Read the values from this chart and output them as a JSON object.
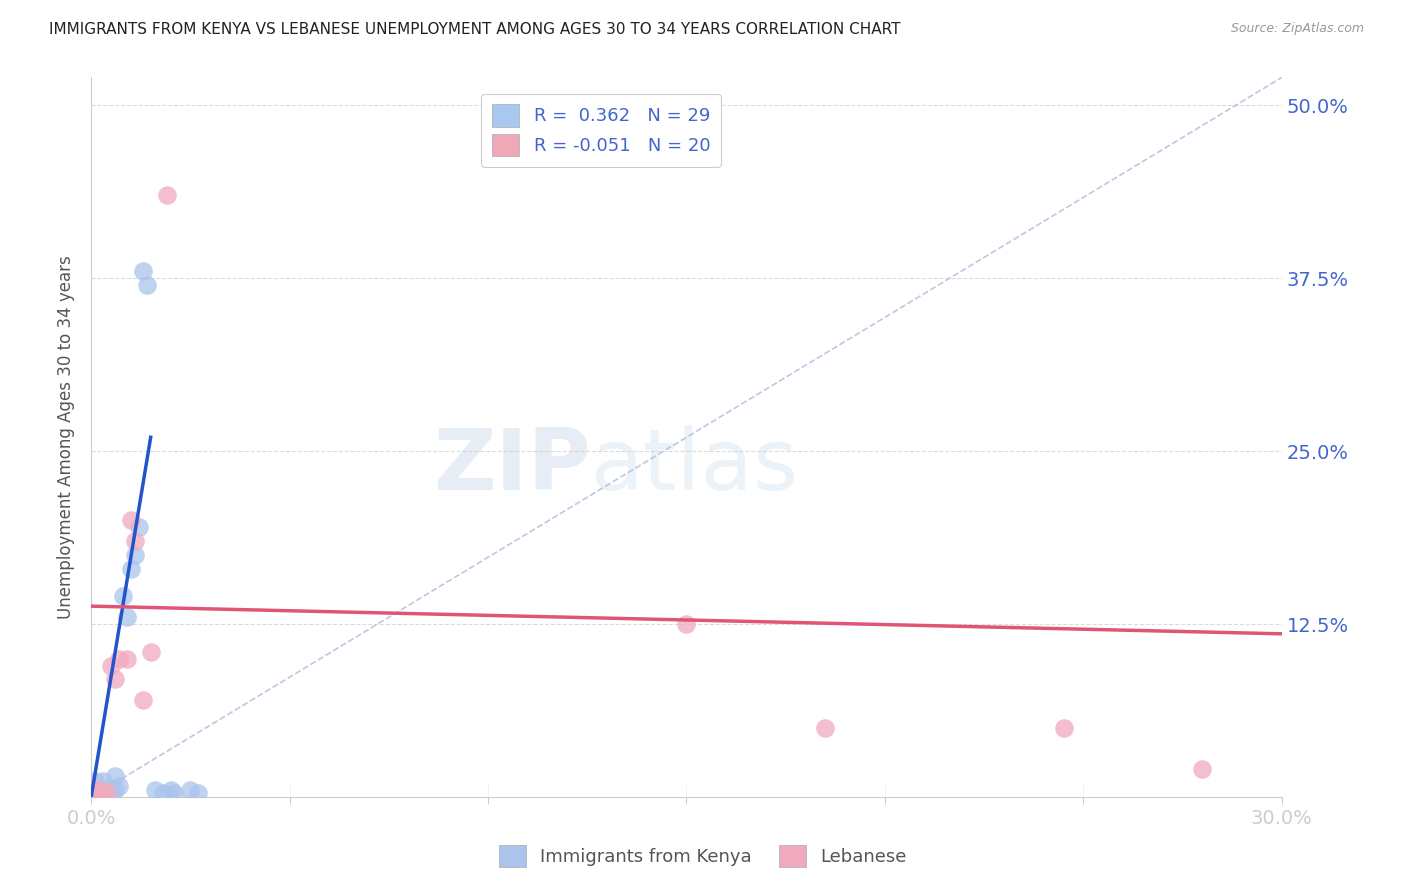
{
  "title": "IMMIGRANTS FROM KENYA VS LEBANESE UNEMPLOYMENT AMONG AGES 30 TO 34 YEARS CORRELATION CHART",
  "source": "Source: ZipAtlas.com",
  "ylabel": "Unemployment Among Ages 30 to 34 years",
  "xlim": [
    0.0,
    0.3
  ],
  "ylim": [
    0.0,
    0.52
  ],
  "x_ticks": [
    0.0,
    0.05,
    0.1,
    0.15,
    0.2,
    0.25,
    0.3
  ],
  "x_tick_labels": [
    "0.0%",
    "",
    "",
    "",
    "",
    "",
    "30.0%"
  ],
  "y_ticks": [
    0.0,
    0.125,
    0.25,
    0.375,
    0.5
  ],
  "y_tick_labels_right": [
    "",
    "12.5%",
    "25.0%",
    "37.5%",
    "50.0%"
  ],
  "legend_entries": [
    {
      "label": "R =  0.362   N = 29",
      "color": "#a8c8f0"
    },
    {
      "label": "R = -0.051   N = 20",
      "color": "#f0a8b8"
    }
  ],
  "kenya_scatter": [
    [
      0.001,
      0.002
    ],
    [
      0.001,
      0.003
    ],
    [
      0.001,
      0.005
    ],
    [
      0.002,
      0.003
    ],
    [
      0.002,
      0.004
    ],
    [
      0.002,
      0.005
    ],
    [
      0.003,
      0.003
    ],
    [
      0.003,
      0.005
    ],
    [
      0.004,
      0.004
    ],
    [
      0.004,
      0.006
    ],
    [
      0.005,
      0.003
    ],
    [
      0.006,
      0.005
    ],
    [
      0.007,
      0.008
    ],
    [
      0.008,
      0.145
    ],
    [
      0.009,
      0.13
    ],
    [
      0.01,
      0.165
    ],
    [
      0.011,
      0.175
    ],
    [
      0.012,
      0.195
    ],
    [
      0.013,
      0.38
    ],
    [
      0.014,
      0.37
    ],
    [
      0.016,
      0.005
    ],
    [
      0.018,
      0.003
    ],
    [
      0.02,
      0.005
    ],
    [
      0.021,
      0.003
    ],
    [
      0.025,
      0.005
    ],
    [
      0.027,
      0.003
    ],
    [
      0.001,
      0.012
    ],
    [
      0.003,
      0.012
    ],
    [
      0.006,
      0.015
    ]
  ],
  "lebanese_scatter": [
    [
      0.001,
      0.002
    ],
    [
      0.001,
      0.003
    ],
    [
      0.001,
      0.005
    ],
    [
      0.002,
      0.003
    ],
    [
      0.002,
      0.005
    ],
    [
      0.003,
      0.003
    ],
    [
      0.004,
      0.004
    ],
    [
      0.005,
      0.095
    ],
    [
      0.006,
      0.085
    ],
    [
      0.007,
      0.1
    ],
    [
      0.009,
      0.1
    ],
    [
      0.01,
      0.2
    ],
    [
      0.011,
      0.185
    ],
    [
      0.013,
      0.07
    ],
    [
      0.015,
      0.105
    ],
    [
      0.019,
      0.435
    ],
    [
      0.15,
      0.125
    ],
    [
      0.185,
      0.05
    ],
    [
      0.245,
      0.05
    ],
    [
      0.28,
      0.02
    ]
  ],
  "kenya_line_x": [
    0.0,
    0.015
  ],
  "kenya_line_y": [
    0.0,
    0.26
  ],
  "lebanese_line_x": [
    0.0,
    0.3
  ],
  "lebanese_line_y": [
    0.138,
    0.118
  ],
  "dashed_line_x": [
    0.0,
    0.3
  ],
  "dashed_line_y": [
    0.0,
    0.52
  ],
  "background_color": "#ffffff",
  "grid_color": "#cccccc",
  "kenya_color": "#aac4ec",
  "lebanese_color": "#f0aabe",
  "kenya_line_color": "#2255cc",
  "lebanese_line_color": "#e05575",
  "title_color": "#222222",
  "axis_label_color": "#4466cc",
  "watermark_zip": "ZIP",
  "watermark_atlas": "atlas",
  "marker_size": 180
}
